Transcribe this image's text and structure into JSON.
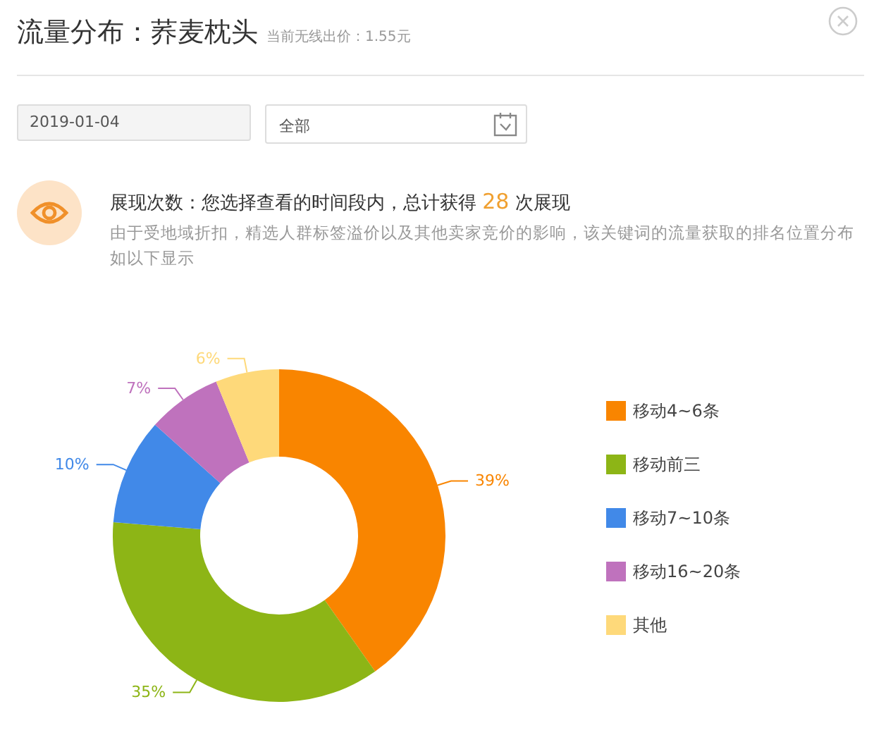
{
  "chart_data": {
    "type": "donut",
    "title": "流量分布：荞麦枕头",
    "subtitle": "当前无线出价：1.55元",
    "annotations": [
      "2019-01-04",
      "全部",
      "展现次数：您选择查看的时间段内，总计获得",
      "28",
      "次展现",
      "由于受地域折扣，精选人群标签溢价以及其他卖家竞价的影响，该关键词的流量获取的排名位置分布如以下显示"
    ],
    "categories": [
      "移动4~6条",
      "移动前三",
      "移动7~10条",
      "移动16~20条",
      "其他"
    ],
    "values": [
      39,
      35,
      10,
      7,
      6
    ],
    "value_labels": [
      "39%",
      "35%",
      "10%",
      "7%",
      "6%"
    ],
    "colors": [
      "#f98500",
      "#8db516",
      "#4189e8",
      "#bf72bd",
      "#fed97a"
    ],
    "legend": "right"
  }
}
